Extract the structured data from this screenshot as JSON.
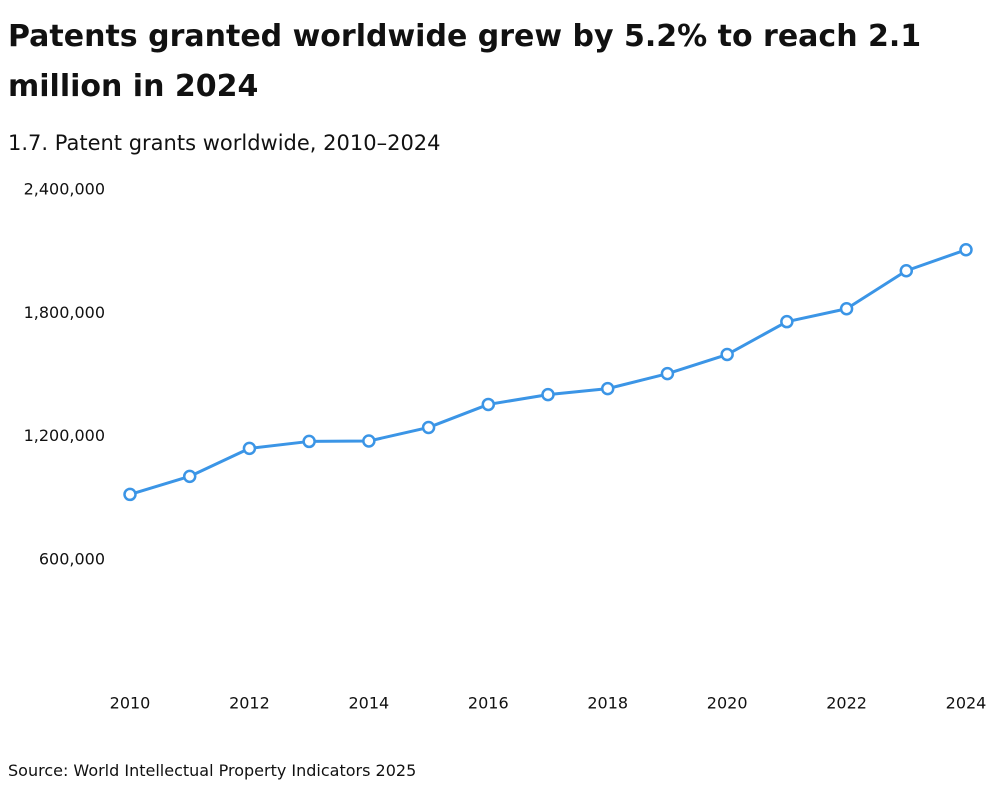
{
  "chart_data": {
    "type": "line",
    "title": "Patents granted worldwide grew by 5.2% to reach 2.1 million in 2024",
    "subtitle": "1.7. Patent grants worldwide, 2010–2024",
    "source": "Source: World Intellectual Property Indicators 2025",
    "x": [
      2010,
      2011,
      2012,
      2013,
      2014,
      2015,
      2016,
      2017,
      2018,
      2019,
      2020,
      2021,
      2022,
      2023,
      2024
    ],
    "series": [
      {
        "name": "Patent grants",
        "color": "#3b95e6",
        "values": [
          918000,
          1006000,
          1142000,
          1176000,
          1178000,
          1244000,
          1356000,
          1404000,
          1433000,
          1506000,
          1599000,
          1759000,
          1822000,
          2007000,
          2109000
        ]
      }
    ],
    "xlim": [
      2010,
      2024
    ],
    "xticks": [
      2010,
      2012,
      2014,
      2016,
      2018,
      2020,
      2022,
      2024
    ],
    "ylim": [
      0,
      2400000
    ],
    "yticks": [
      {
        "value": 600000,
        "label": "600,000"
      },
      {
        "value": 1200000,
        "label": "1,200,000"
      },
      {
        "value": 1800000,
        "label": "1,800,000"
      },
      {
        "value": 2400000,
        "label": "2,400,000"
      }
    ],
    "grid": false
  }
}
